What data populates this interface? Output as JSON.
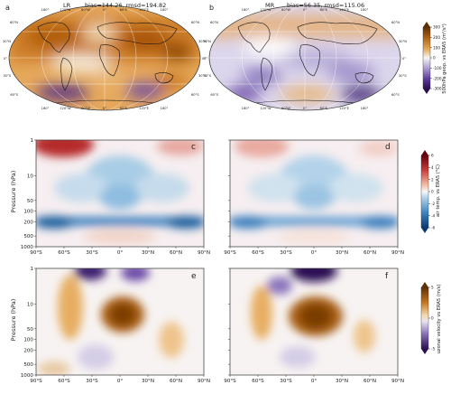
{
  "panels": {
    "a": {
      "letter": "a",
      "model": "LR",
      "stats": "bias=144.26, rmsd=194.82"
    },
    "b": {
      "letter": "b",
      "model": "MR",
      "stats": "bias=56.35, rmsd=115.06"
    },
    "c": {
      "letter": "c"
    },
    "d": {
      "letter": "d"
    },
    "e": {
      "letter": "e"
    },
    "f": {
      "letter": "f"
    }
  },
  "map_top_lon_labels": [
    "180°",
    "120°W",
    "60°W",
    "0°",
    "60°E",
    "120°E",
    "180°"
  ],
  "map_bottom_lon_labels": [
    "180°",
    "120°W",
    "60°W",
    "0°",
    "60°E",
    "120°E",
    "180°"
  ],
  "map_lat_labels_left": [
    "60°N",
    "30°N",
    "0°",
    "30°S",
    "60°S"
  ],
  "map_lat_labels_right": [
    "60°N",
    "30°N",
    "0°",
    "30°S",
    "60°S"
  ],
  "colorbar_geop": {
    "label": "500hPa geop. vs ERA5 (m²/s²)",
    "ticks": [
      "300",
      "200",
      "100",
      "0",
      "-100",
      "-200",
      "-300"
    ],
    "colors": {
      "pos": "#a65a0c",
      "neg": "#3a1a6e"
    }
  },
  "colorbar_temp": {
    "label": "air temp. vs ERA5 (°C)",
    "ticks": [
      "6",
      "4",
      "2",
      "0",
      "-2",
      "-4",
      "-6"
    ],
    "colors": {
      "pos": "#8c1022",
      "neg": "#164f8c"
    }
  },
  "colorbar_wind": {
    "label": "uzonal velocity vs ERA5 (m/s)",
    "ticks": [
      "5",
      "0",
      "-5"
    ],
    "colors": {
      "pos": "#8c4a08",
      "neg": "#3a1a6e"
    }
  },
  "axes": {
    "pressure_label": "Pressure (hPa)",
    "pressure_ticks": [
      "1",
      "10",
      "50",
      "100",
      "200",
      "500",
      "1000"
    ],
    "lat_ticks": [
      "90°S",
      "60°S",
      "30°S",
      "0°",
      "30°N",
      "60°N",
      "90°N"
    ]
  }
}
